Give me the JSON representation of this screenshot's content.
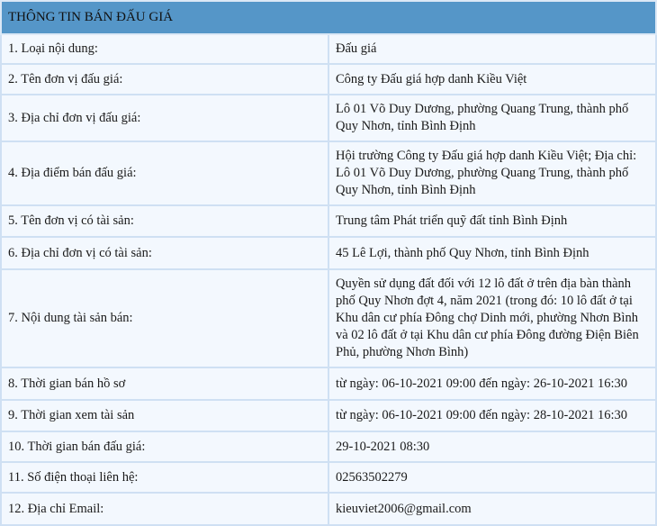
{
  "title": "THÔNG TIN BÁN ĐẤU GIÁ",
  "rows": [
    {
      "label": "1. Loại nội dung:",
      "value": "Đấu giá"
    },
    {
      "label": "2. Tên đơn vị đấu giá:",
      "value": "Công ty Đấu giá hợp danh Kiều Việt"
    },
    {
      "label": "3. Địa chỉ đơn vị đấu giá:",
      "value": "Lô 01 Võ Duy Dương, phường Quang Trung, thành phố Quy Nhơn, tỉnh Bình Định"
    },
    {
      "label": "4. Địa điểm bán đấu giá:",
      "value": "Hội trường Công ty Đấu giá hợp danh Kiều Việt; Địa chỉ: Lô 01 Võ Duy Dương, phường Quang Trung, thành phố Quy Nhơn, tỉnh Bình Định"
    },
    {
      "label": "5. Tên đơn vị có tài sản:",
      "value": "Trung tâm Phát triển quỹ đất tỉnh Bình Định"
    },
    {
      "label": "6. Địa chỉ đơn vị có tài sản:",
      "value": "45 Lê Lợi, thành phố Quy Nhơn, tỉnh Bình Định"
    },
    {
      "label": "7. Nội dung tài sản bán:",
      "value": "Quyền sử dụng đất đối với 12 lô đất ở trên địa bàn thành phố Quy Nhơn đợt 4, năm 2021 (trong đó: 10 lô đất ở tại Khu dân cư phía Đông chợ Dinh mới, phường Nhơn Bình và 02 lô đất ở tại Khu dân cư phía Đông đường Điện Biên Phủ, phường Nhơn Bình)"
    },
    {
      "label": "8. Thời gian bán hồ sơ",
      "value": "từ ngày: 06-10-2021 09:00 đến ngày: 26-10-2021 16:30"
    },
    {
      "label": "9. Thời gian xem tài sản",
      "value": "từ ngày: 06-10-2021 09:00 đến ngày: 28-10-2021 16:30"
    },
    {
      "label": "10. Thời gian bán đấu giá:",
      "value": "29-10-2021 08:30"
    },
    {
      "label": "11. Số điện thoại liên hệ:",
      "value": "02563502279"
    },
    {
      "label": "12. Địa chỉ Email:",
      "value": "kieuviet2006@gmail.com"
    }
  ]
}
